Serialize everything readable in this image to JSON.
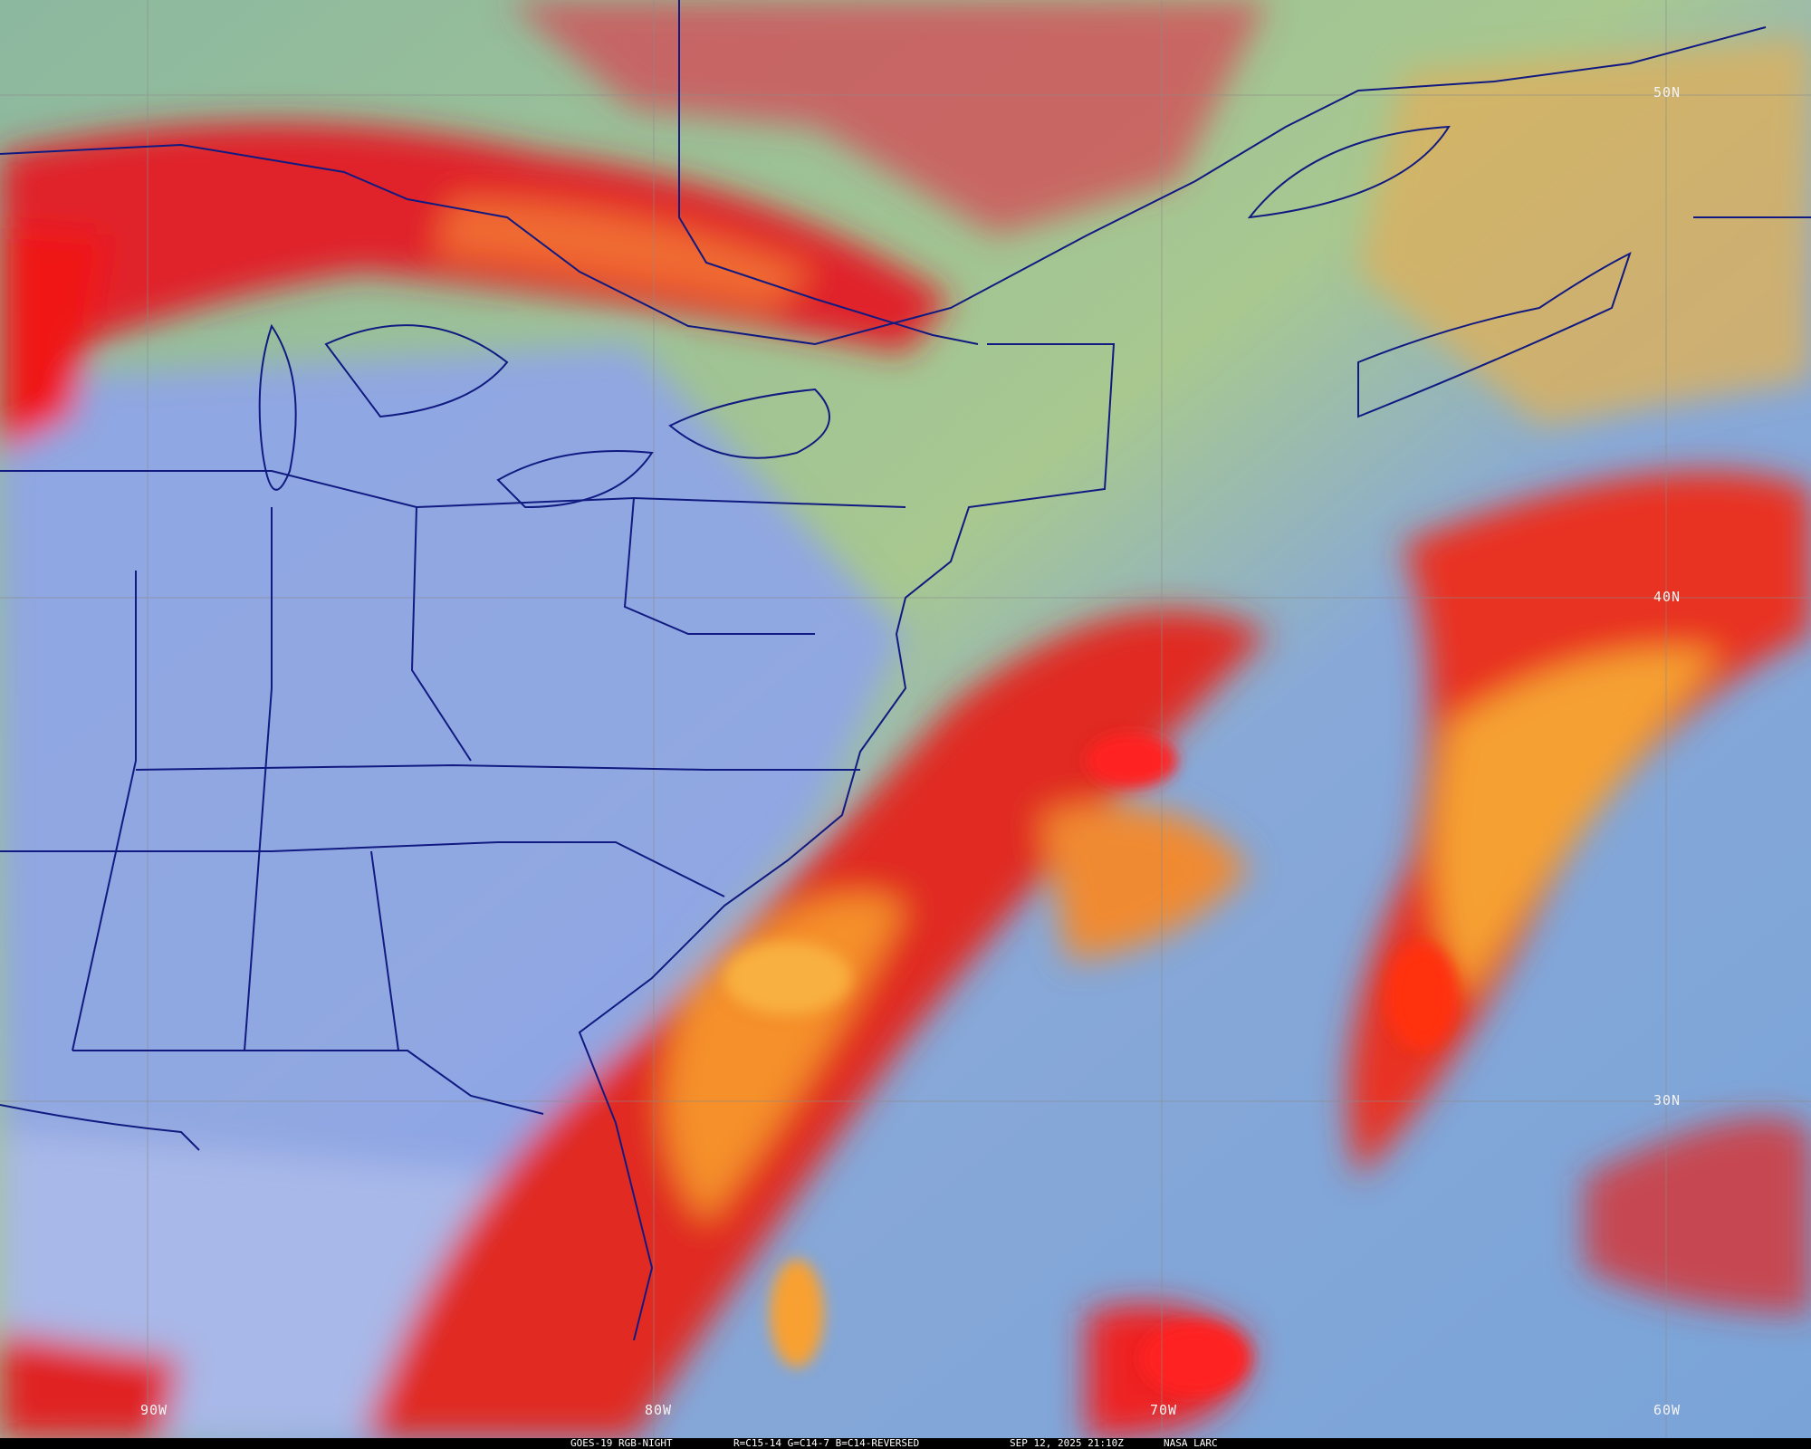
{
  "caption": {
    "product": "GOES-19 RGB-NIGHT",
    "channels": "R=C15-14 G=C14-7 B=C14-REVERSED",
    "timestamp": "SEP 12, 2025 21:10Z",
    "credit": "NASA LARC"
  },
  "grid": {
    "latitudes": [
      "50N",
      "40N",
      "30N"
    ],
    "longitudes": [
      "90W",
      "80W",
      "70W",
      "60W"
    ]
  },
  "colors": {
    "clear_land": "#8aa0e8",
    "clear_ocean": "#7fa8d8",
    "high_cloud": "#e8202a",
    "cold_cloud": "#f5a030",
    "low_cloud": "#a8c890",
    "boundaries": "#101a80"
  }
}
